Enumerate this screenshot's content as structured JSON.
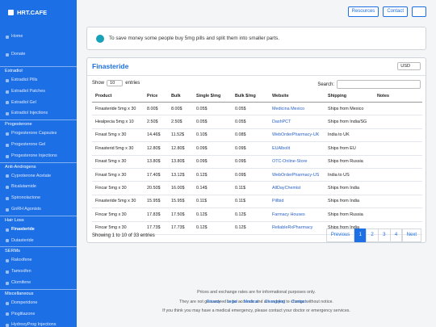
{
  "sidebar": {
    "brand": "HRT.CAFE",
    "links": [
      "Home",
      "Donate"
    ],
    "active": "Finasteride",
    "groups": [
      {
        "title": "Estradiol",
        "items": [
          "Estradiol Pills",
          "Estradiol Patches",
          "Estradiol Gel",
          "Estradiol Injections"
        ]
      },
      {
        "title": "Progesterone",
        "items": [
          "Progesterone Capsules",
          "Progesterone Gel",
          "Progesterone Injections"
        ]
      },
      {
        "title": "Anti-Androgens",
        "items": [
          "Cyproterone Acetate",
          "Bicalutamide",
          "Spironolactone",
          "GnRH Agonists"
        ]
      },
      {
        "title": "Hair Loss",
        "items": [
          "Finasteride",
          "Dutasteride"
        ]
      },
      {
        "title": "SERMs",
        "items": [
          "Raloxifene",
          "Tamoxifen",
          "Clomifene"
        ]
      },
      {
        "title": "Miscellaneous",
        "items": [
          "Domperidone",
          "Pioglitazone",
          "HydroxyProg Injections"
        ]
      }
    ]
  },
  "topbar": {
    "buttons": [
      "Resources",
      "Contact"
    ]
  },
  "alert": "To save money some people buy 5mg pills and split them into smaller parts.",
  "card": {
    "title": "Finasteride",
    "currency": "USD",
    "show_label": "Show",
    "page_size": "10",
    "entries_label": "entries",
    "search_label": "Search:",
    "columns": [
      "Product",
      "Price",
      "Bulk",
      "Single $/mg",
      "Bulk $/mg",
      "Website",
      "Shipping",
      "Notes"
    ],
    "rows": [
      [
        "Finasteride 5mg x 30",
        "8.00$",
        "8.00$",
        "0.05$",
        "0.05$",
        "Medicina Mexico",
        "Ships from Mexico"
      ],
      [
        "Healpecia 5mg x 10",
        "2.50$",
        "2.50$",
        "0.05$",
        "0.05$",
        "DashPCT",
        "Ships from India/SG"
      ],
      [
        "Finast 5mg x 30",
        "14.46$",
        "11.52$",
        "0.10$",
        "0.08$",
        "WebOrderPharmacy-UK",
        "India to UK"
      ],
      [
        "Finasterid 5mg x 30",
        "12.80$",
        "12.80$",
        "0.09$",
        "0.09$",
        "EUAlbolit",
        "Ships from EU"
      ],
      [
        "Finast 5mg x 30",
        "13.80$",
        "13.80$",
        "0.09$",
        "0.09$",
        "OTC-Online-Store",
        "Ships from Russia"
      ],
      [
        "Finast 5mg x 30",
        "17.40$",
        "13.12$",
        "0.12$",
        "0.09$",
        "WebOrderPharmacy-US",
        "India to US"
      ],
      [
        "Fincar 5mg x 30",
        "20.50$",
        "16.00$",
        "0.14$",
        "0.11$",
        "AllDayChemist",
        "Ships from India"
      ],
      [
        "Finasteride 5mg x 30",
        "15.95$",
        "15.95$",
        "0.11$",
        "0.11$",
        "Pillbid",
        "Ships from India"
      ],
      [
        "Fincar 5mg x 30",
        "17.83$",
        "17.50$",
        "0.12$",
        "0.12$",
        "Farmacy Houses",
        "Ships from Russia"
      ],
      [
        "Fincar 5mg x 30",
        "17.73$",
        "17.73$",
        "0.12$",
        "0.12$",
        "ReliableRxPharmacy",
        "Ships from India"
      ]
    ],
    "info": "Showing 1 to 10 of 33 entries",
    "pagination": [
      "Previous",
      "1",
      "2",
      "3",
      "4",
      "Next"
    ],
    "active_page": "1"
  },
  "footer": {
    "lines": [
      "Prices and exchange rates are for informational purposes only.",
      "They are not guaranteed to be accurate and are subject to change without notice.",
      "If you think you may have a medical emergency, please contact your doctor or emergency services."
    ],
    "links": [
      "Privacy",
      "Legal",
      "Medical",
      "Changelog",
      "Contact"
    ],
    "separator": "·"
  }
}
